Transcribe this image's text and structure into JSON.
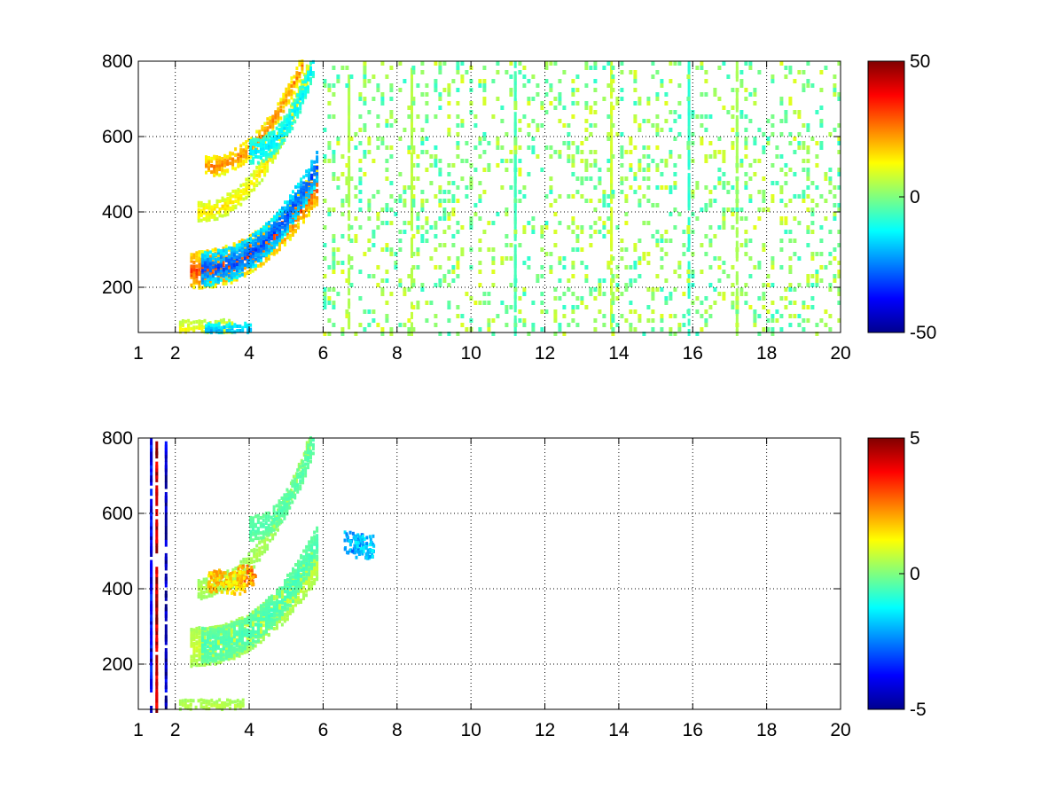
{
  "chart_data": [
    {
      "type": "heatmap",
      "title": "",
      "xlabel": "",
      "ylabel": "",
      "xlim": [
        1,
        20
      ],
      "ylim": [
        80,
        800
      ],
      "xticks": [
        1,
        2,
        4,
        6,
        8,
        10,
        12,
        14,
        16,
        18,
        20
      ],
      "yticks": [
        200,
        400,
        600,
        800
      ],
      "grid": true,
      "colormap": "jet",
      "colorbar": {
        "clim": [
          -50,
          50
        ],
        "ticks": [
          50,
          0,
          -50
        ]
      },
      "features": [
        {
          "name": "band",
          "x0": 2.4,
          "x1": 5.8,
          "y_start": 245,
          "y_end": 470,
          "value": 30,
          "width": 45
        },
        {
          "name": "band",
          "x0": 2.7,
          "x1": 5.8,
          "y_start": 250,
          "y_end": 520,
          "value": -30,
          "width": 40
        },
        {
          "name": "band",
          "x0": 2.6,
          "x1": 5.6,
          "y_start": 400,
          "y_end": 780,
          "value": 15,
          "width": 25
        },
        {
          "name": "band",
          "x0": 2.8,
          "x1": 5.4,
          "y_start": 520,
          "y_end": 790,
          "value": 25,
          "width": 25
        },
        {
          "name": "band",
          "x0": 4.0,
          "x1": 5.7,
          "y_start": 560,
          "y_end": 790,
          "value": -15,
          "width": 30
        },
        {
          "name": "band",
          "x0": 2.1,
          "x1": 3.5,
          "y_start": 90,
          "y_end": 95,
          "value": 12,
          "width": 15
        },
        {
          "name": "band",
          "x0": 2.8,
          "x1": 4.0,
          "y_start": 88,
          "y_end": 90,
          "value": -20,
          "width": 12
        }
      ],
      "noise": {
        "x0": 6.0,
        "x1": 20.0,
        "density": 0.22,
        "value_range": [
          -8,
          10
        ]
      },
      "stripes": [
        {
          "x": 8.4,
          "value": 6
        },
        {
          "x": 11.2,
          "value": -6
        },
        {
          "x": 13.8,
          "value": 8
        },
        {
          "x": 15.9,
          "value": -8
        },
        {
          "x": 17.2,
          "value": 4
        },
        {
          "x": 6.7,
          "value": 5
        }
      ]
    },
    {
      "type": "heatmap",
      "title": "",
      "xlabel": "",
      "ylabel": "",
      "xlim": [
        1,
        20
      ],
      "ylim": [
        80,
        800
      ],
      "xticks": [
        1,
        2,
        4,
        6,
        8,
        10,
        12,
        14,
        16,
        18,
        20
      ],
      "yticks": [
        200,
        400,
        600,
        800
      ],
      "grid": true,
      "colormap": "jet",
      "colorbar": {
        "clim": [
          -5,
          5
        ],
        "ticks": [
          5,
          0,
          -5
        ]
      },
      "features": [
        {
          "name": "band",
          "x0": 2.4,
          "x1": 5.8,
          "y_start": 245,
          "y_end": 470,
          "value": 0.8,
          "width": 45
        },
        {
          "name": "band",
          "x0": 2.7,
          "x1": 5.8,
          "y_start": 250,
          "y_end": 520,
          "value": -0.6,
          "width": 40
        },
        {
          "name": "band",
          "x0": 2.6,
          "x1": 5.6,
          "y_start": 400,
          "y_end": 780,
          "value": 0.5,
          "width": 25
        },
        {
          "name": "band",
          "x0": 4.0,
          "x1": 5.7,
          "y_start": 560,
          "y_end": 790,
          "value": -0.5,
          "width": 30
        },
        {
          "name": "band",
          "x0": 2.1,
          "x1": 3.8,
          "y_start": 90,
          "y_end": 90,
          "value": 0.6,
          "width": 12
        }
      ],
      "blobs": [
        {
          "x": 3.1,
          "y": 420,
          "value": 2.0
        },
        {
          "x": 3.9,
          "y": 430,
          "value": 2.5
        },
        {
          "x": 3.6,
          "y": 415,
          "value": 1.8
        },
        {
          "x": 6.8,
          "y": 520,
          "value": -2.5
        },
        {
          "x": 7.1,
          "y": 510,
          "value": -2.0
        }
      ],
      "stripes": [
        {
          "x": 1.5,
          "value": 4.5
        },
        {
          "x": 1.75,
          "value": -4.5
        },
        {
          "x": 1.35,
          "value": -4
        }
      ]
    }
  ]
}
